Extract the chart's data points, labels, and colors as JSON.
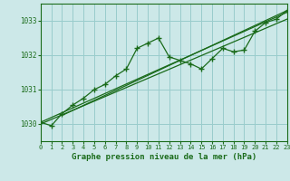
{
  "title": "Graphe pression niveau de la mer (hPa)",
  "bg_color": "#cce8e8",
  "grid_color": "#99cccc",
  "line_color": "#1a6b1a",
  "xlim": [
    0,
    23
  ],
  "ylim": [
    1029.5,
    1033.5
  ],
  "yticks": [
    1030,
    1031,
    1032,
    1033
  ],
  "xticks": [
    0,
    1,
    2,
    3,
    4,
    5,
    6,
    7,
    8,
    9,
    10,
    11,
    12,
    13,
    14,
    15,
    16,
    17,
    18,
    19,
    20,
    21,
    22,
    23
  ],
  "series_marker_x": [
    0,
    1,
    2,
    3,
    4,
    5,
    6,
    7,
    8,
    9,
    10,
    11,
    12,
    13,
    14,
    15,
    16,
    17,
    18,
    19,
    20,
    21,
    22,
    23
  ],
  "series_marker_y": [
    1030.05,
    1029.95,
    1030.3,
    1030.55,
    1030.75,
    1031.0,
    1031.15,
    1031.4,
    1031.6,
    1032.2,
    1032.35,
    1032.5,
    1031.95,
    1031.85,
    1031.75,
    1031.6,
    1031.9,
    1032.2,
    1032.1,
    1032.15,
    1032.7,
    1032.95,
    1033.05,
    1033.3
  ],
  "series_line1_x": [
    0,
    23
  ],
  "series_line1_y": [
    1030.0,
    1033.05
  ],
  "series_line2_x": [
    0,
    23
  ],
  "series_line2_y": [
    1030.05,
    1033.25
  ],
  "series_line3_x": [
    2,
    23
  ],
  "series_line3_y": [
    1030.25,
    1033.3
  ],
  "ylabel_fontsize": 5.5,
  "xlabel_fontsize": 6.5,
  "tick_fontsize": 5.0
}
